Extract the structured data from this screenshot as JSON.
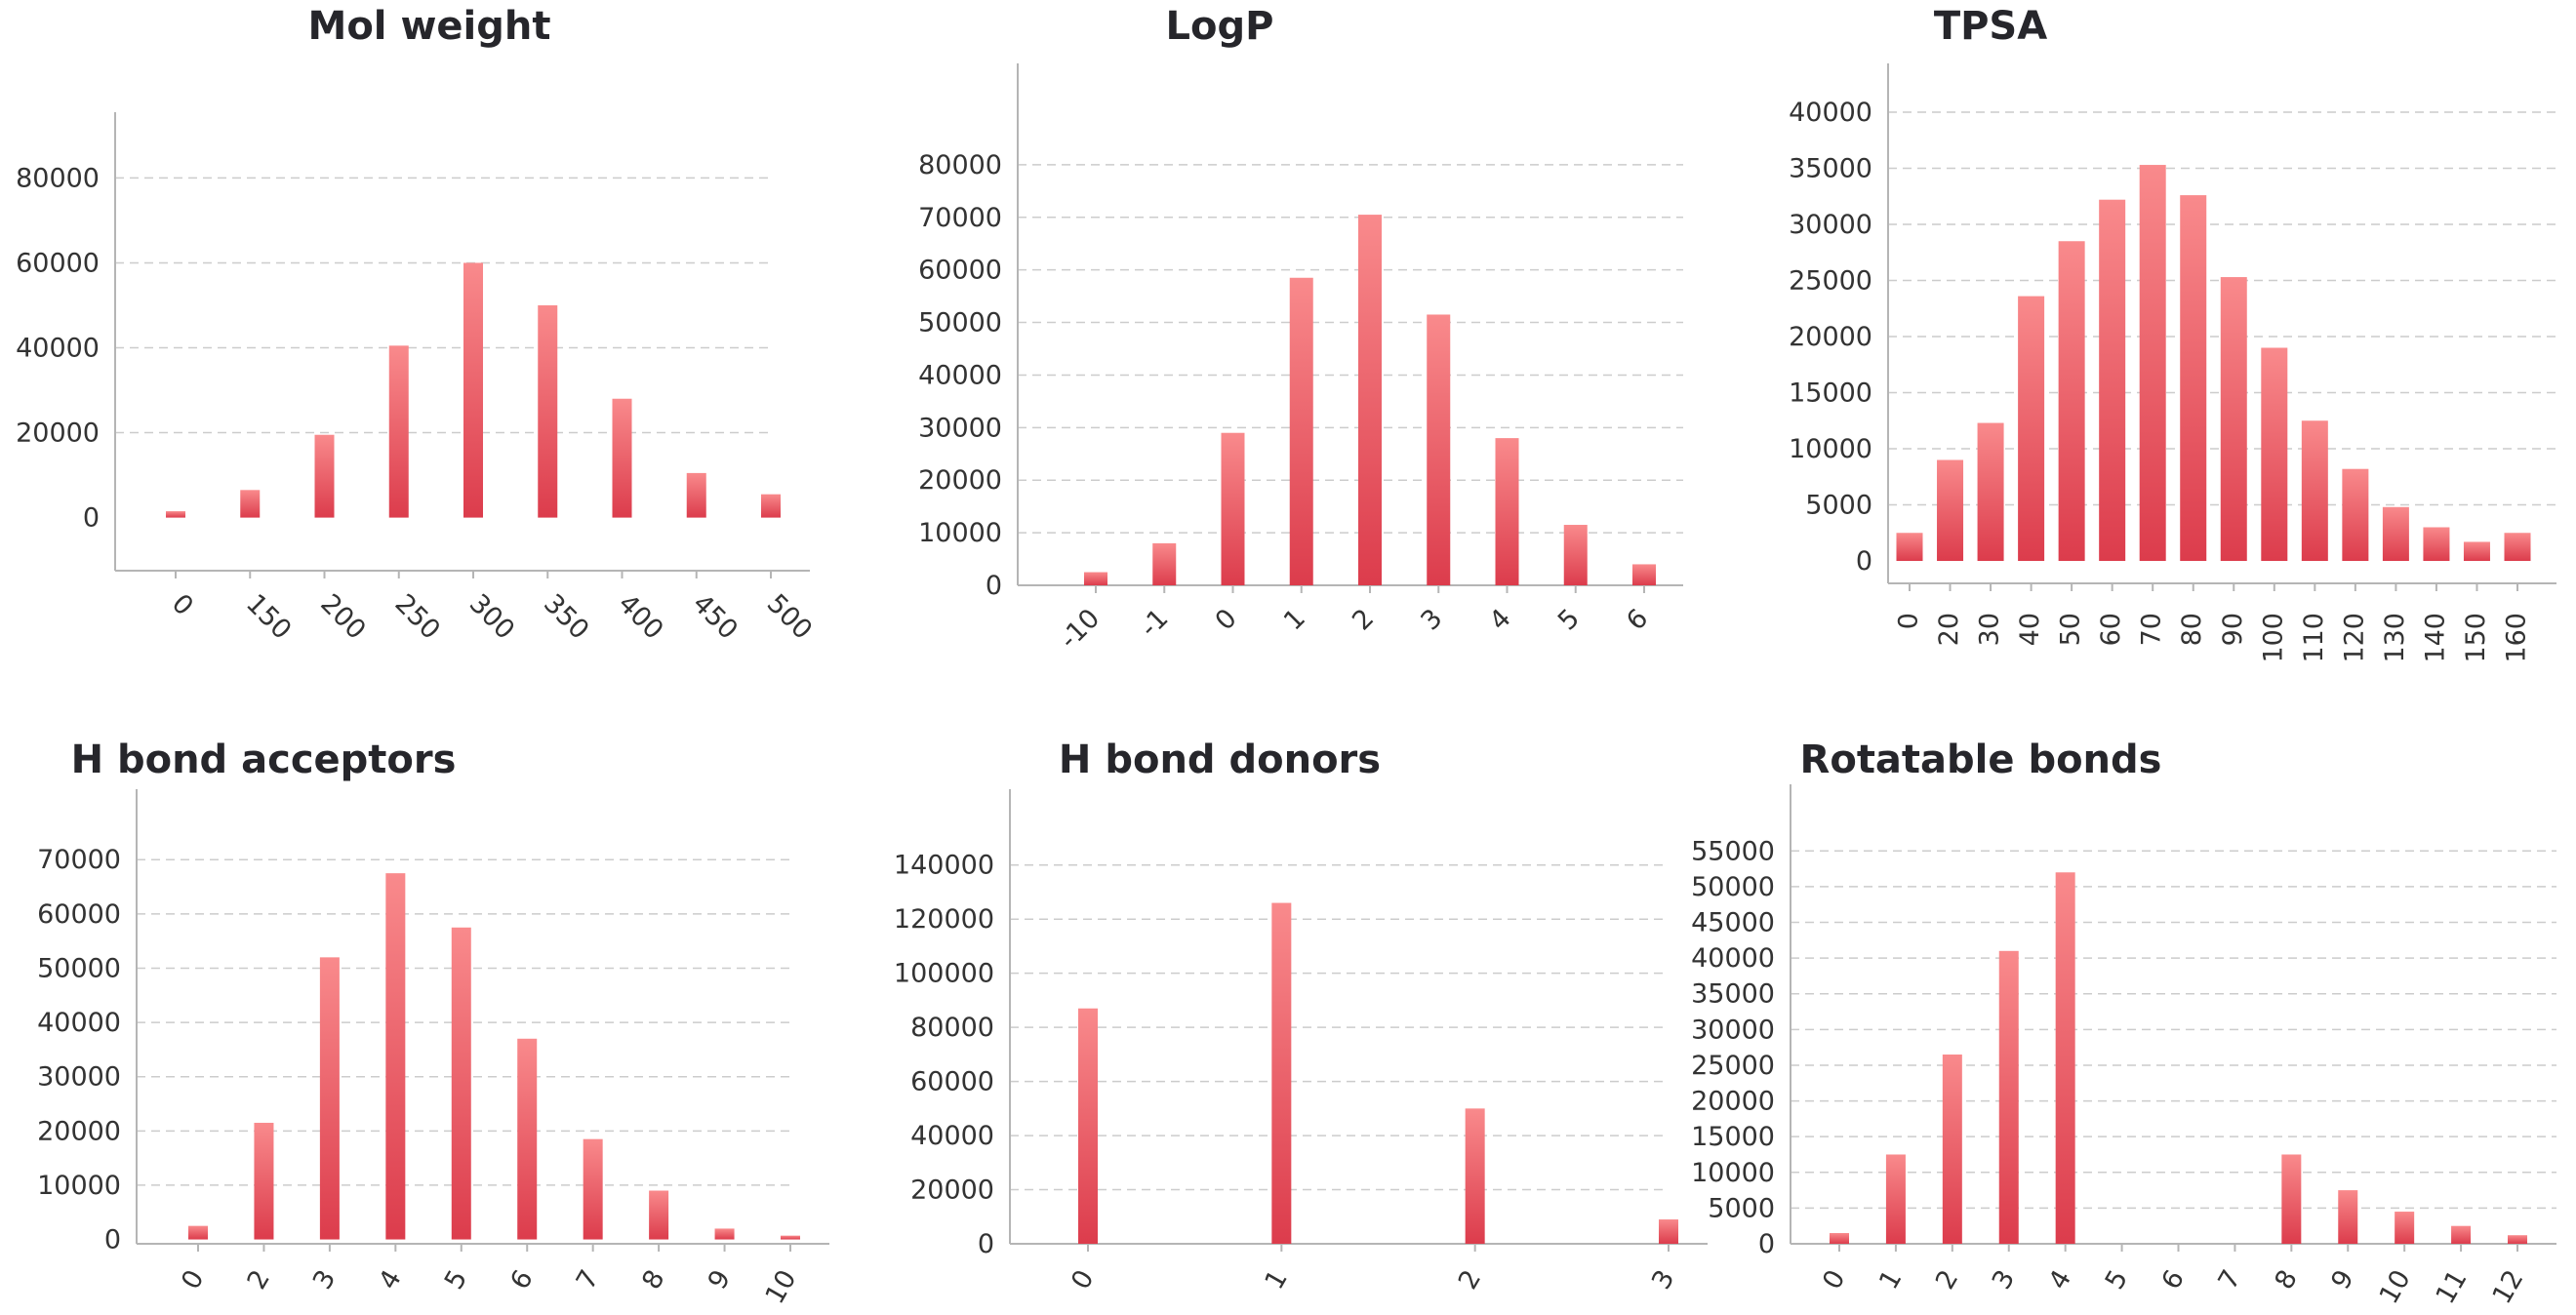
{
  "colors": {
    "bar_top": "#f98a8c",
    "bar_bottom": "#dc3c4c",
    "axis": "#b5b5b5",
    "grid": "#cccccc",
    "text": "#26262b"
  },
  "chart_data": [
    {
      "type": "bar",
      "title": "Mol weight",
      "categories": [
        "0",
        "150",
        "200",
        "250",
        "300",
        "350",
        "400",
        "450",
        "500"
      ],
      "values": [
        1500,
        6500,
        19500,
        40500,
        60000,
        50000,
        28000,
        10500,
        5500
      ],
      "yticks": [
        0,
        20000,
        40000,
        60000,
        80000
      ],
      "ylim": [
        -12500,
        84000
      ],
      "tick_rotation": 45
    },
    {
      "type": "bar",
      "title": "LogP",
      "categories": [
        "-10",
        "-1",
        "0",
        "1",
        "2",
        "3",
        "4",
        "5",
        "6"
      ],
      "values": [
        2500,
        8000,
        29000,
        58500,
        70500,
        51500,
        28000,
        11500,
        4000
      ],
      "yticks": [
        0,
        10000,
        20000,
        30000,
        40000,
        50000,
        60000,
        70000,
        80000
      ],
      "ylim": [
        0,
        90000
      ],
      "tick_rotation": -45
    },
    {
      "type": "bar",
      "title": "TPSA",
      "categories": [
        "0",
        "20",
        "30",
        "40",
        "50",
        "60",
        "70",
        "80",
        "90",
        "100",
        "110",
        "120",
        "130",
        "140",
        "150",
        "160"
      ],
      "values": [
        2500,
        9000,
        12300,
        23600,
        28500,
        32200,
        35300,
        32600,
        25300,
        19000,
        12500,
        8200,
        4800,
        3000,
        1700,
        2500
      ],
      "yticks": [
        0,
        5000,
        10000,
        15000,
        20000,
        25000,
        30000,
        35000,
        40000
      ],
      "ylim": [
        -2000,
        40000
      ],
      "tick_rotation": -90
    },
    {
      "type": "bar",
      "title": "H bond acceptors",
      "categories": [
        "0",
        "2",
        "3",
        "4",
        "5",
        "6",
        "7",
        "8",
        "9",
        "10"
      ],
      "values": [
        2500,
        21500,
        52000,
        67500,
        57500,
        37000,
        18500,
        9000,
        2000,
        700
      ],
      "yticks": [
        0,
        10000,
        20000,
        30000,
        40000,
        50000,
        60000,
        70000
      ],
      "ylim": [
        -800,
        74000
      ],
      "tick_rotation": -60
    },
    {
      "type": "bar",
      "title": "H  bond donors",
      "categories": [
        "0",
        "1",
        "2",
        "3"
      ],
      "values": [
        87000,
        126000,
        50000,
        9000
      ],
      "yticks": [
        0,
        20000,
        40000,
        60000,
        80000,
        100000,
        120000,
        140000
      ],
      "ylim": [
        0,
        150000
      ],
      "tick_rotation": -60
    },
    {
      "type": "bar",
      "title": "Rotatable bonds",
      "categories": [
        "0",
        "1",
        "2",
        "3",
        "4",
        "5",
        "6",
        "7",
        "8",
        "9",
        "10",
        "11",
        "12"
      ],
      "values": [
        1500,
        12500,
        26500,
        41000,
        52000,
        0,
        0,
        0,
        12500,
        7500,
        4500,
        2500,
        1200
      ],
      "yticks": [
        0,
        5000,
        10000,
        15000,
        20000,
        25000,
        30000,
        35000,
        40000,
        45000,
        50000,
        55000
      ],
      "ylim": [
        0,
        57500
      ],
      "tick_rotation": -60
    }
  ]
}
